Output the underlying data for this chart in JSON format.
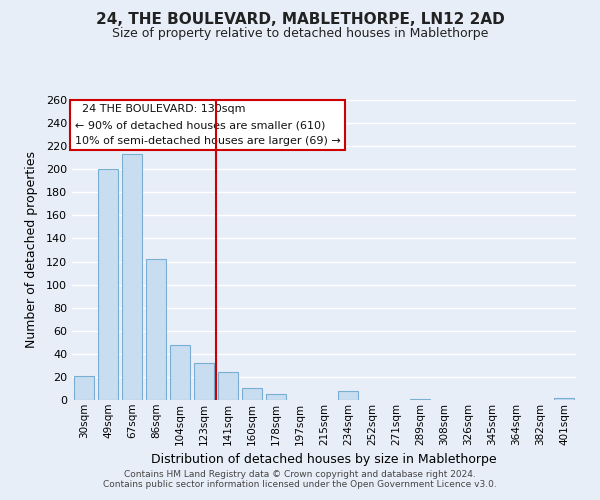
{
  "title": "24, THE BOULEVARD, MABLETHORPE, LN12 2AD",
  "subtitle": "Size of property relative to detached houses in Mablethorpe",
  "xlabel": "Distribution of detached houses by size in Mablethorpe",
  "ylabel": "Number of detached properties",
  "bar_labels": [
    "30sqm",
    "49sqm",
    "67sqm",
    "86sqm",
    "104sqm",
    "123sqm",
    "141sqm",
    "160sqm",
    "178sqm",
    "197sqm",
    "215sqm",
    "234sqm",
    "252sqm",
    "271sqm",
    "289sqm",
    "308sqm",
    "326sqm",
    "345sqm",
    "364sqm",
    "382sqm",
    "401sqm"
  ],
  "bar_values": [
    21,
    200,
    213,
    122,
    48,
    32,
    24,
    10,
    5,
    0,
    0,
    8,
    0,
    0,
    1,
    0,
    0,
    0,
    0,
    0,
    2
  ],
  "bar_color": "#c8ddf0",
  "bar_edge_color": "#7aafd4",
  "vline_color": "#cc0000",
  "annotation_title": "24 THE BOULEVARD: 130sqm",
  "annotation_line1": "← 90% of detached houses are smaller (610)",
  "annotation_line2": "10% of semi-detached houses are larger (69) →",
  "annotation_box_color": "#ffffff",
  "annotation_box_edge": "#cc0000",
  "ylim": [
    0,
    260
  ],
  "yticks": [
    0,
    20,
    40,
    60,
    80,
    100,
    120,
    140,
    160,
    180,
    200,
    220,
    240,
    260
  ],
  "footer1": "Contains HM Land Registry data © Crown copyright and database right 2024.",
  "footer2": "Contains public sector information licensed under the Open Government Licence v3.0.",
  "bg_color": "#e8eef8",
  "grid_color": "#ffffff",
  "vline_bar_index": 6
}
